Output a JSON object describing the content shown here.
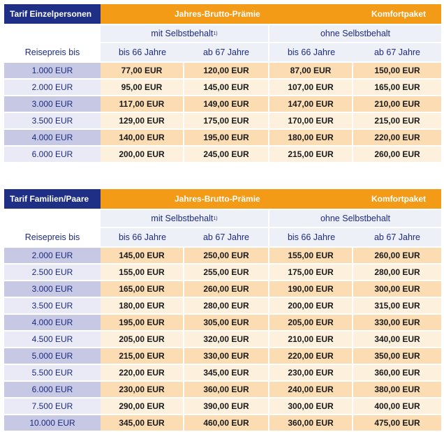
{
  "tables": [
    {
      "label": "Tarif Einzelpersonen",
      "group_header": "Jahres-Brutto-Prämie",
      "package_header": "Komfortpaket",
      "sub_with": "mit Selbstbehalt",
      "sub_with_sup": "1)",
      "sub_without": "ohne Selbstbehalt",
      "col_price": "Reisepreis bis",
      "col_age_a": "bis 66 Jahre",
      "col_age_b": "ab 67 Jahre",
      "rows": [
        [
          "1.000 EUR",
          "77,00 EUR",
          "120,00 EUR",
          "87,00 EUR",
          "150,00 EUR"
        ],
        [
          "2.000 EUR",
          "95,00 EUR",
          "145,00 EUR",
          "107,00 EUR",
          "165,00 EUR"
        ],
        [
          "3.000 EUR",
          "117,00 EUR",
          "149,00 EUR",
          "147,00 EUR",
          "210,00 EUR"
        ],
        [
          "3.500 EUR",
          "129,00 EUR",
          "175,00 EUR",
          "170,00 EUR",
          "215,00 EUR"
        ],
        [
          "4.000 EUR",
          "140,00 EUR",
          "195,00 EUR",
          "180,00 EUR",
          "220,00 EUR"
        ],
        [
          "6.000 EUR",
          "200,00 EUR",
          "245,00 EUR",
          "215,00 EUR",
          "260,00 EUR"
        ]
      ]
    },
    {
      "label": "Tarif Familien/Paare",
      "group_header": "Jahres-Brutto-Prämie",
      "package_header": "Komfortpaket",
      "sub_with": "mit Selbstbehalt",
      "sub_with_sup": "1)",
      "sub_without": "ohne Selbstbehalt",
      "col_price": "Reisepreis bis",
      "col_age_a": "bis 66 Jahre",
      "col_age_b": "ab 67 Jahre",
      "rows": [
        [
          "2.000 EUR",
          "145,00 EUR",
          "250,00 EUR",
          "155,00 EUR",
          "260,00 EUR"
        ],
        [
          "2.500 EUR",
          "155,00 EUR",
          "255,00 EUR",
          "175,00 EUR",
          "280,00 EUR"
        ],
        [
          "3.000 EUR",
          "165,00 EUR",
          "260,00 EUR",
          "190,00 EUR",
          "300,00 EUR"
        ],
        [
          "3.500 EUR",
          "180,00 EUR",
          "280,00 EUR",
          "200,00 EUR",
          "315,00 EUR"
        ],
        [
          "4.000 EUR",
          "195,00 EUR",
          "305,00 EUR",
          "205,00 EUR",
          "330,00 EUR"
        ],
        [
          "4.500 EUR",
          "205,00 EUR",
          "320,00 EUR",
          "210,00 EUR",
          "340,00 EUR"
        ],
        [
          "5.000 EUR",
          "215,00 EUR",
          "330,00 EUR",
          "220,00 EUR",
          "350,00 EUR"
        ],
        [
          "5.500 EUR",
          "220,00 EUR",
          "345,00 EUR",
          "230,00 EUR",
          "360,00 EUR"
        ],
        [
          "6.000 EUR",
          "230,00 EUR",
          "360,00 EUR",
          "240,00 EUR",
          "380,00 EUR"
        ],
        [
          "7.500 EUR",
          "290,00 EUR",
          "390,00 EUR",
          "300,00 EUR",
          "400,00 EUR"
        ],
        [
          "10.000 EUR",
          "345,00 EUR",
          "460,00 EUR",
          "360,00 EUR",
          "475,00 EUR"
        ]
      ]
    }
  ],
  "colors": {
    "navy": "#1f2f86",
    "orange": "#f39a16",
    "price_dark": "#c6c8e4",
    "price_light": "#e9eaf5",
    "value_dark": "#fbdcb3",
    "value_light": "#fdf0dc"
  }
}
